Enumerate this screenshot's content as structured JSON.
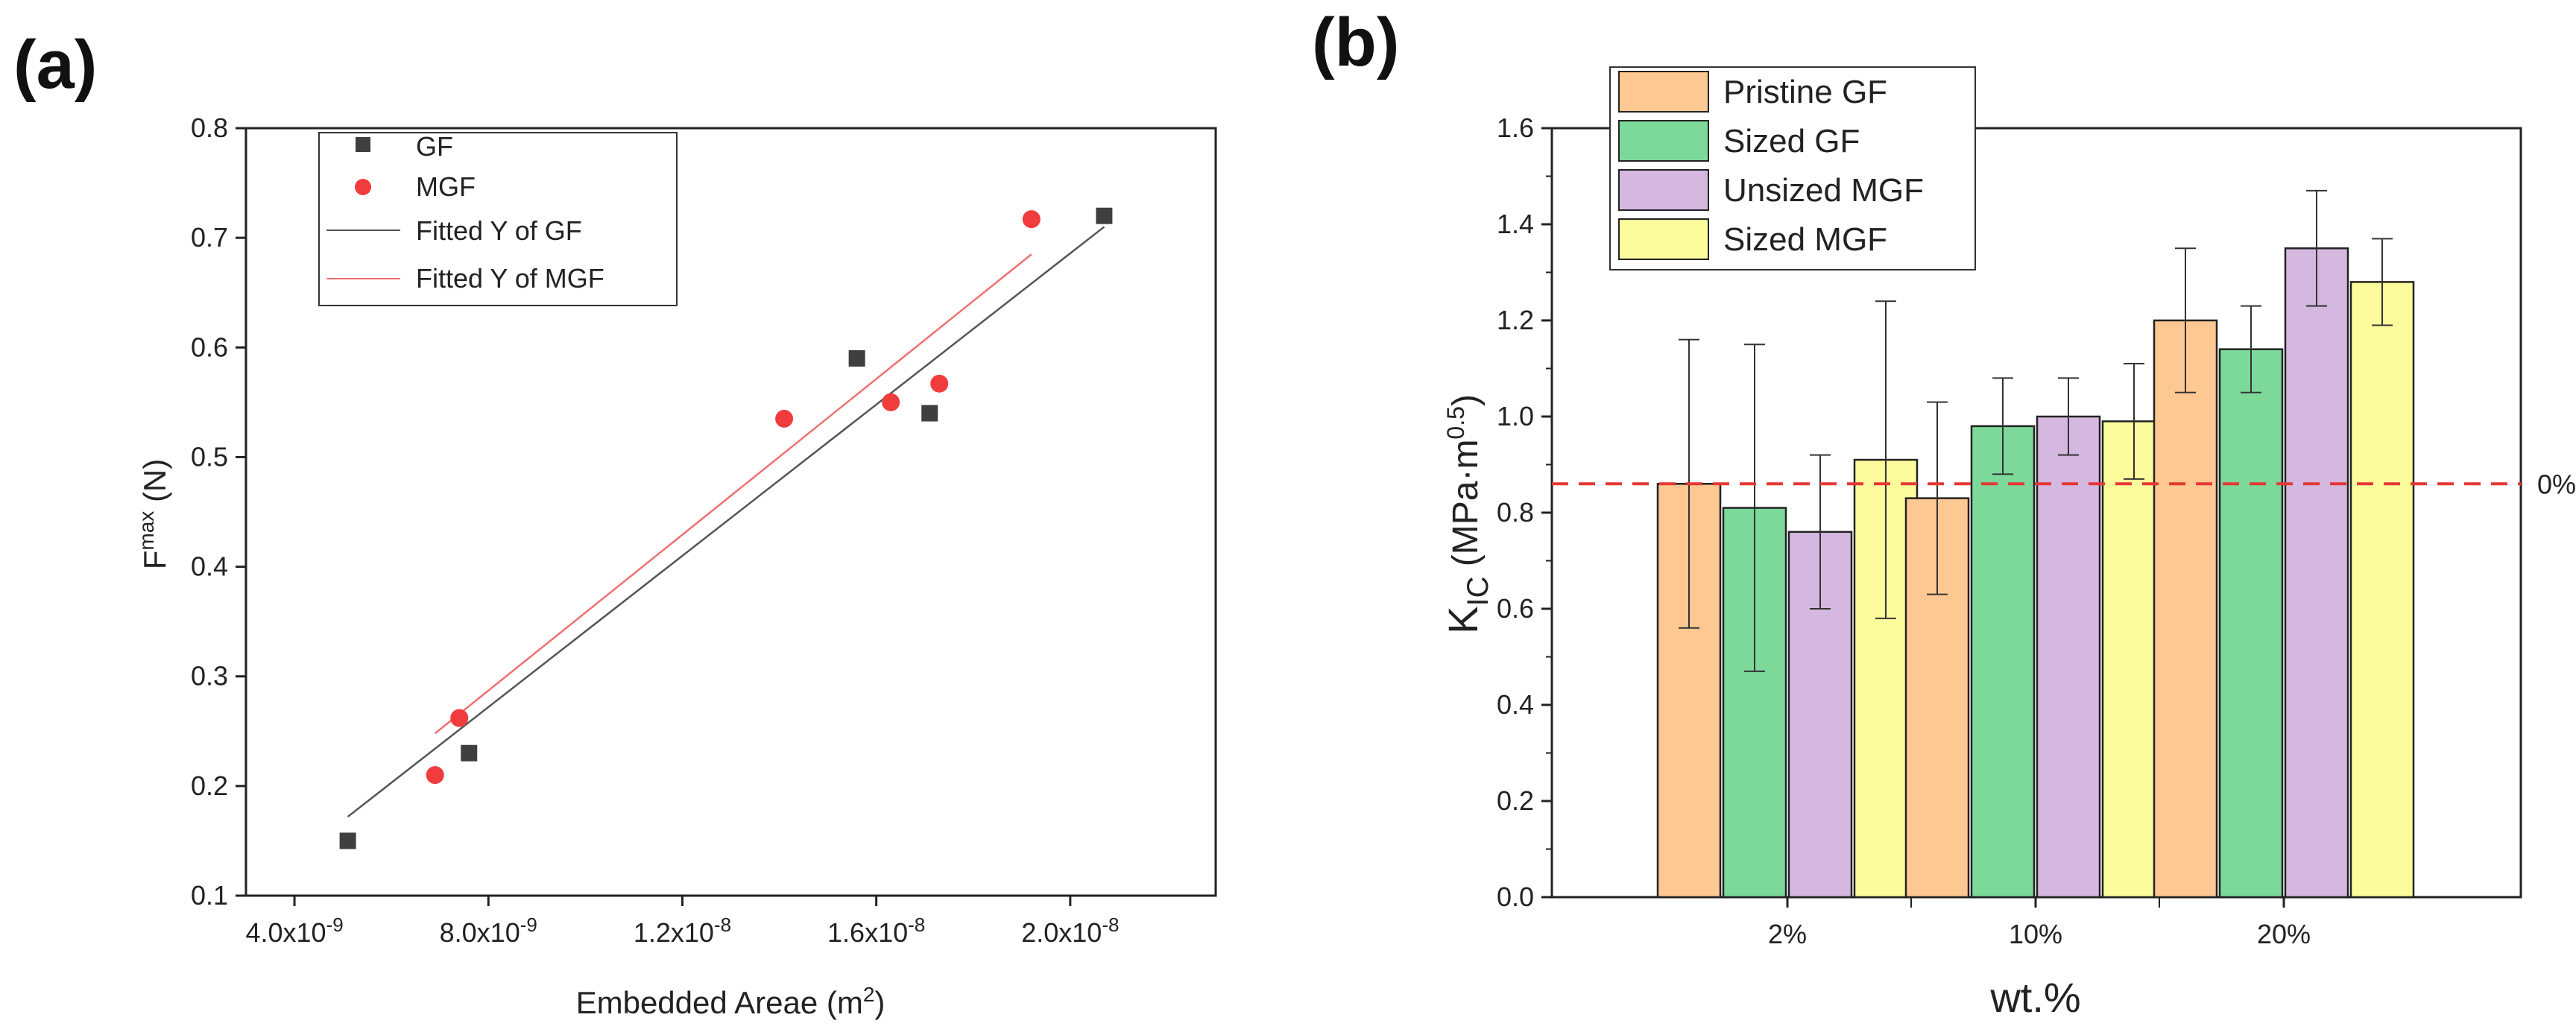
{
  "panels": {
    "a_letter": "(a)",
    "b_letter": "(b)"
  },
  "chart_data": [
    {
      "type": "scatter",
      "panel": "(a)",
      "xlabel": "Embedded Areae (m2)",
      "xlabel_main": "Embedded Areae (m",
      "xlabel_sup": "2",
      "xlabel_end": ")",
      "ylabel": "Fmax (N)",
      "ylabel_main": "F",
      "ylabel_sup": "max",
      "ylabel_end": " (N)",
      "xlim": [
        3e-09,
        2.3e-08
      ],
      "ylim": [
        0.1,
        0.8
      ],
      "xticks": [
        4e-09,
        8e-09,
        1.2e-08,
        1.6e-08,
        2e-08
      ],
      "xtick_labels": [
        "4.0x10",
        "8.0x10",
        "1.2x10",
        "1.6x10",
        "2.0x10"
      ],
      "xtick_exps": [
        "-9",
        "-9",
        "-8",
        "-8",
        "-8"
      ],
      "yticks": [
        0.1,
        0.2,
        0.3,
        0.4,
        0.5,
        0.6,
        0.7,
        0.8
      ],
      "ytick_labels": [
        "0.1",
        "0.2",
        "0.3",
        "0.4",
        "0.5",
        "0.6",
        "0.7",
        "0.8"
      ],
      "legend_position": "top-left",
      "series": [
        {
          "name": "GF",
          "marker": "square",
          "color": "#3f3f3f",
          "x": [
            5.1e-09,
            7.6e-09,
            1.56e-08,
            1.71e-08,
            2.07e-08
          ],
          "y": [
            0.15,
            0.23,
            0.59,
            0.54,
            0.72
          ]
        },
        {
          "name": "MGF",
          "marker": "circle",
          "color": "#f03c3c",
          "x": [
            6.9e-09,
            7.4e-09,
            1.41e-08,
            1.63e-08,
            1.73e-08,
            1.92e-08
          ],
          "y": [
            0.21,
            0.262,
            0.535,
            0.55,
            0.567,
            0.717
          ]
        }
      ],
      "fits": [
        {
          "name": "Fitted Y of GF",
          "color": "#555555",
          "x": [
            5.1e-09,
            2.07e-08
          ],
          "y": [
            0.172,
            0.71
          ]
        },
        {
          "name": "Fitted Y of MGF",
          "color": "#f07070",
          "x": [
            6.9e-09,
            1.92e-08
          ],
          "y": [
            0.248,
            0.685
          ]
        }
      ]
    },
    {
      "type": "bar",
      "panel": "(b)",
      "xlabel": "wt.%",
      "ylabel": "KIC (MPa·m0.5)",
      "ylabel_k": "K",
      "ylabel_sub": "IC",
      "ylabel_mid": " (MPa·m",
      "ylabel_sup": "0.5",
      "ylabel_end": ")",
      "categories": [
        "2%",
        "10%",
        "20%"
      ],
      "ylim": [
        0.0,
        1.6
      ],
      "yticks": [
        0.0,
        0.2,
        0.4,
        0.6,
        0.8,
        1.0,
        1.2,
        1.4,
        1.6
      ],
      "ytick_labels": [
        "0.0",
        "0.2",
        "0.4",
        "0.6",
        "0.8",
        "1.0",
        "1.2",
        "1.4",
        "1.6"
      ],
      "legend_position": "top-left",
      "series": [
        {
          "name": "Pristine GF",
          "color": "#fdc891",
          "values": [
            0.86,
            0.83,
            1.2
          ],
          "errors": [
            0.3,
            0.2,
            0.15
          ]
        },
        {
          "name": "Sized GF",
          "color": "#7cd99a",
          "values": [
            0.81,
            0.98,
            1.14
          ],
          "errors": [
            0.34,
            0.1,
            0.09
          ]
        },
        {
          "name": "Unsized MGF",
          "color": "#d4b8e0",
          "values": [
            0.76,
            1.0,
            1.35
          ],
          "errors": [
            0.16,
            0.08,
            0.12
          ]
        },
        {
          "name": "Sized MGF",
          "color": "#fcfc9c",
          "values": [
            0.91,
            0.99,
            1.28
          ],
          "errors": [
            0.33,
            0.12,
            0.09
          ]
        }
      ],
      "reference_line": {
        "value": 0.86,
        "label": "0%",
        "color": "#e53935"
      }
    }
  ]
}
